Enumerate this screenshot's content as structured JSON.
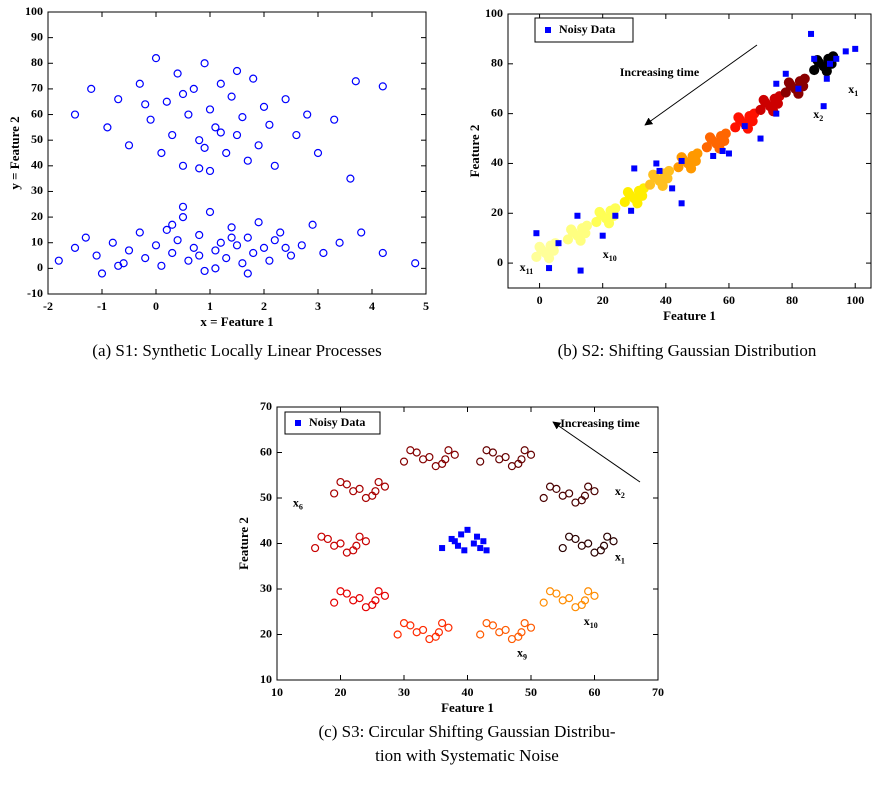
{
  "chart_data": [
    {
      "type": "scatter",
      "caption": [
        "(a) S1: Synthetic Locally Linear Processes"
      ],
      "xlabel": "x = Feature 1",
      "ylabel": "y = Feature 2",
      "xlim": [
        -2,
        5
      ],
      "ylim": [
        -10,
        100
      ],
      "xticks": [
        -2,
        -1,
        0,
        1,
        2,
        3,
        4,
        5
      ],
      "yticks": [
        -10,
        0,
        10,
        20,
        30,
        40,
        50,
        60,
        70,
        80,
        90,
        100
      ],
      "series": [
        {
          "color": "#0000ff",
          "marker": "o",
          "filled": false,
          "x": [
            -1.5,
            -1.2,
            -0.9,
            -0.7,
            -0.5,
            -0.3,
            -0.1,
            0.0,
            0.1,
            0.2,
            0.3,
            0.4,
            0.5,
            0.6,
            0.7,
            0.8,
            0.9,
            1.0,
            1.0,
            1.1,
            1.2,
            1.3,
            1.4,
            1.5,
            1.6,
            1.7,
            1.8,
            1.9,
            2.0,
            2.1,
            2.2,
            2.4,
            2.6,
            2.8,
            3.0,
            3.3,
            3.6,
            3.7,
            4.2,
            0.5,
            0.9,
            1.2,
            -0.2,
            0.8,
            1.5
          ],
          "values": [
            60,
            70,
            55,
            66,
            48,
            72,
            58,
            82,
            45,
            65,
            52,
            76,
            40,
            60,
            70,
            50,
            80,
            38,
            62,
            55,
            72,
            45,
            67,
            52,
            59,
            42,
            74,
            48,
            63,
            56,
            40,
            66,
            52,
            60,
            45,
            58,
            35,
            73,
            71,
            68,
            47,
            53,
            64,
            39,
            77
          ]
        },
        {
          "color": "#0000ff",
          "marker": "o",
          "filled": false,
          "x": [
            -1.8,
            -1.5,
            -1.3,
            -1.1,
            -1.0,
            -0.8,
            -0.6,
            -0.5,
            -0.3,
            -0.2,
            0.0,
            0.1,
            0.2,
            0.3,
            0.4,
            0.5,
            0.6,
            0.7,
            0.8,
            0.9,
            1.0,
            1.1,
            1.2,
            1.3,
            1.4,
            1.5,
            1.6,
            1.7,
            1.8,
            1.9,
            2.0,
            2.1,
            2.2,
            2.3,
            2.5,
            2.7,
            2.9,
            3.1,
            3.4,
            3.8,
            4.2,
            4.8,
            0.5,
            0.8,
            1.1,
            1.4,
            0.3,
            1.7,
            2.4,
            -0.7
          ],
          "values": [
            3,
            8,
            12,
            5,
            -2,
            10,
            2,
            7,
            14,
            4,
            9,
            1,
            15,
            6,
            11,
            20,
            3,
            8,
            13,
            -1,
            22,
            7,
            10,
            4,
            16,
            9,
            2,
            12,
            6,
            18,
            8,
            3,
            11,
            14,
            5,
            9,
            17,
            6,
            10,
            14,
            6,
            2,
            24,
            5,
            0,
            12,
            17,
            -2,
            8,
            1
          ]
        }
      ]
    },
    {
      "type": "scatter",
      "caption": [
        "(b) S2: Shifting Gaussian Distribution"
      ],
      "xlabel": "Feature 1",
      "ylabel": "Feature 2",
      "xlim": [
        -10,
        105
      ],
      "ylim": [
        -10,
        100
      ],
      "xticks": [
        0,
        20,
        40,
        60,
        80,
        100
      ],
      "yticks": [
        0,
        20,
        40,
        60,
        80,
        100
      ],
      "legend": "upper left",
      "series": [
        {
          "color": "#ffff99",
          "marker": "o",
          "filled": true,
          "x": [
            -1,
            0.5,
            2,
            3.5,
            5,
            0,
            3,
            4.5
          ],
          "values": [
            2.5,
            5.5,
            4,
            7,
            8,
            6.5,
            2,
            5
          ]
        },
        {
          "color": "#ffff80",
          "marker": "o",
          "filled": true,
          "x": [
            9,
            10.5,
            12,
            13.5,
            15,
            10,
            13,
            14.5
          ],
          "values": [
            9.5,
            12.5,
            11,
            14,
            15,
            13.5,
            9,
            12
          ]
        },
        {
          "color": "#ffff55",
          "marker": "o",
          "filled": true,
          "x": [
            18,
            19.5,
            21,
            22.5,
            24,
            19,
            22,
            23.5
          ],
          "values": [
            16.5,
            19.5,
            18,
            21,
            22,
            20.5,
            16,
            19
          ]
        },
        {
          "color": "#ffee00",
          "marker": "o",
          "filled": true,
          "x": [
            27,
            28.5,
            30,
            31.5,
            33,
            28,
            31,
            32.5
          ],
          "values": [
            24.5,
            27.5,
            26,
            29,
            30,
            28.5,
            24,
            27
          ]
        },
        {
          "color": "#ffc020",
          "marker": "o",
          "filled": true,
          "x": [
            35,
            36.5,
            38,
            39.5,
            41,
            36,
            39,
            40.5
          ],
          "values": [
            31.5,
            34.5,
            33,
            36,
            37,
            35.5,
            31,
            34
          ]
        },
        {
          "color": "#ff9900",
          "marker": "o",
          "filled": true,
          "x": [
            44,
            45.5,
            47,
            48.5,
            50,
            45,
            48,
            49.5
          ],
          "values": [
            38.5,
            41.5,
            40,
            43,
            44,
            42.5,
            38,
            41
          ]
        },
        {
          "color": "#ff6600",
          "marker": "o",
          "filled": true,
          "x": [
            53,
            54.5,
            56,
            57.5,
            59,
            54,
            57,
            58.5
          ],
          "values": [
            46.5,
            49.5,
            48,
            51,
            52,
            50.5,
            46,
            49
          ]
        },
        {
          "color": "#ff1100",
          "marker": "o",
          "filled": true,
          "x": [
            62,
            63.5,
            65,
            66.5,
            68,
            63,
            66,
            67.5
          ],
          "values": [
            54.5,
            57.5,
            56,
            59,
            60,
            58.5,
            54,
            57
          ]
        },
        {
          "color": "#cc0000",
          "marker": "o",
          "filled": true,
          "x": [
            70,
            71.5,
            73,
            74.5,
            76,
            71,
            74,
            75.5
          ],
          "values": [
            61.5,
            64.5,
            63,
            66,
            67,
            65.5,
            61,
            64
          ]
        },
        {
          "color": "#8a0000",
          "marker": "o",
          "filled": true,
          "x": [
            78,
            79.5,
            81,
            82.5,
            84,
            79,
            82,
            83.5
          ],
          "values": [
            68.5,
            71.5,
            70,
            73,
            74,
            72.5,
            68,
            71
          ]
        },
        {
          "color": "#000000",
          "marker": "o",
          "filled": true,
          "x": [
            87,
            88.5,
            90,
            91.5,
            93,
            88,
            91,
            92.5
          ],
          "values": [
            77.5,
            80.5,
            79,
            82,
            83,
            81.5,
            77,
            80
          ]
        },
        {
          "name": "Noisy Data",
          "color": "#0000ff",
          "marker": "s",
          "filled": true,
          "x": [
            -1,
            3,
            6,
            12,
            13,
            20,
            24,
            29,
            30,
            37,
            38,
            42,
            45,
            45,
            55,
            58,
            60,
            65,
            70,
            75,
            75,
            78,
            82,
            86,
            87,
            92,
            90,
            91,
            94,
            97,
            100
          ],
          "values": [
            12,
            -2,
            8,
            19,
            -3,
            11,
            19,
            21,
            38,
            40,
            37,
            30,
            41,
            24,
            43,
            45,
            44,
            55,
            50,
            72,
            60,
            76,
            70,
            92,
            82,
            80,
            63,
            74,
            82,
            85,
            86
          ]
        }
      ],
      "annotations": [
        {
          "text": "Increasing time",
          "x": 25.4,
          "y": 76.3
        },
        {
          "text": "x",
          "sub": "1",
          "x": 97.8,
          "y": 69.5
        },
        {
          "text": "x",
          "sub": "2",
          "x": 86.7,
          "y": 59.4
        },
        {
          "text": "x",
          "sub": "10",
          "x": 20,
          "y": 3.2
        },
        {
          "text": "x",
          "sub": "11",
          "x": -6.3,
          "y": -2
        }
      ]
    },
    {
      "type": "scatter",
      "caption": [
        "(c) S3: Circular Shifting Gaussian Distribu-",
        "tion with Systematic Noise"
      ],
      "xlabel": "Feature 1",
      "ylabel": "Feature 2",
      "xlim": [
        10,
        70
      ],
      "ylim": [
        10,
        70
      ],
      "xticks": [
        10,
        20,
        30,
        40,
        50,
        60,
        70
      ],
      "yticks": [
        10,
        20,
        30,
        40,
        50,
        60,
        70
      ],
      "legend": "upper left",
      "series": [
        {
          "color": "#2a0000",
          "marker": "o",
          "filled": false,
          "x": [
            55,
            57,
            59,
            61,
            63,
            56,
            60,
            62,
            58,
            61.5
          ],
          "values": [
            39,
            41,
            40,
            38.5,
            40.5,
            41.5,
            38,
            41.5,
            39.5,
            39.5
          ]
        },
        {
          "color": "#4a0000",
          "marker": "o",
          "filled": false,
          "x": [
            52,
            54,
            56,
            58,
            60,
            53,
            57,
            59,
            55,
            58.5
          ],
          "values": [
            50,
            52,
            51,
            49.5,
            51.5,
            52.5,
            49,
            52.5,
            50.5,
            50.5
          ]
        },
        {
          "color": "#660000",
          "marker": "o",
          "filled": false,
          "x": [
            42,
            44,
            46,
            48,
            50,
            43,
            47,
            49,
            45,
            48.5
          ],
          "values": [
            58,
            60,
            59,
            57.5,
            59.5,
            60.5,
            57,
            60.5,
            58.5,
            58.5
          ]
        },
        {
          "color": "#850000",
          "marker": "o",
          "filled": false,
          "x": [
            30,
            32,
            34,
            36,
            38,
            31,
            35,
            37,
            33,
            36.5
          ],
          "values": [
            58,
            60,
            59,
            57.5,
            59.5,
            60.5,
            57,
            60.5,
            58.5,
            58.5
          ]
        },
        {
          "color": "#a80000",
          "marker": "o",
          "filled": false,
          "x": [
            19,
            21,
            23,
            25,
            27,
            20,
            24,
            26,
            22,
            25.5
          ],
          "values": [
            51,
            53,
            52,
            50.5,
            52.5,
            53.5,
            50,
            53.5,
            51.5,
            51.5
          ]
        },
        {
          "color": "#c80000",
          "marker": "o",
          "filled": false,
          "x": [
            16,
            18,
            20,
            22,
            24,
            17,
            21,
            23,
            19,
            22.5
          ],
          "values": [
            39,
            41,
            40,
            38.5,
            40.5,
            41.5,
            38,
            41.5,
            39.5,
            39.5
          ]
        },
        {
          "color": "#e60000",
          "marker": "o",
          "filled": false,
          "x": [
            19,
            21,
            23,
            25,
            27,
            20,
            24,
            26,
            22,
            25.5
          ],
          "values": [
            27,
            29,
            28,
            26.5,
            28.5,
            29.5,
            26,
            29.5,
            27.5,
            27.5
          ]
        },
        {
          "color": "#ff2a00",
          "marker": "o",
          "filled": false,
          "x": [
            29,
            31,
            33,
            35,
            37,
            30,
            34,
            36,
            32,
            35.5
          ],
          "values": [
            20,
            22,
            21,
            19.5,
            21.5,
            22.5,
            19,
            22.5,
            20.5,
            20.5
          ]
        },
        {
          "color": "#ff5a00",
          "marker": "o",
          "filled": false,
          "x": [
            42,
            44,
            46,
            48,
            50,
            43,
            47,
            49,
            45,
            48.5
          ],
          "values": [
            20,
            22,
            21,
            19.5,
            21.5,
            22.5,
            19,
            22.5,
            20.5,
            20.5
          ]
        },
        {
          "color": "#ff8c00",
          "marker": "o",
          "filled": false,
          "x": [
            52,
            54,
            56,
            58,
            60,
            53,
            57,
            59,
            55,
            58.5
          ],
          "values": [
            27,
            29,
            28,
            26.5,
            28.5,
            29.5,
            26,
            29.5,
            27.5,
            27.5
          ]
        },
        {
          "name": "Noisy Data",
          "color": "#0000ff",
          "marker": "s",
          "filled": true,
          "x": [
            36,
            37.5,
            38,
            39,
            40,
            41,
            42,
            43,
            39.5,
            41.5,
            38.5,
            42.5
          ],
          "values": [
            39,
            41,
            40.5,
            42,
            43,
            40,
            39,
            38.5,
            38.5,
            41.5,
            39.5,
            40.5
          ]
        }
      ],
      "annotations": [
        {
          "text": "Increasing time",
          "x": 54.6,
          "y": 66.3
        },
        {
          "text": "x",
          "sub": "2",
          "x": 63.2,
          "y": 51.3
        },
        {
          "text": "x",
          "sub": "6",
          "x": 12.5,
          "y": 48.8
        },
        {
          "text": "x",
          "sub": "1",
          "x": 63.2,
          "y": 36.9
        },
        {
          "text": "x",
          "sub": "10",
          "x": 58.3,
          "y": 22.7
        },
        {
          "text": "x",
          "sub": "9",
          "x": 47.8,
          "y": 15.8
        }
      ]
    }
  ]
}
